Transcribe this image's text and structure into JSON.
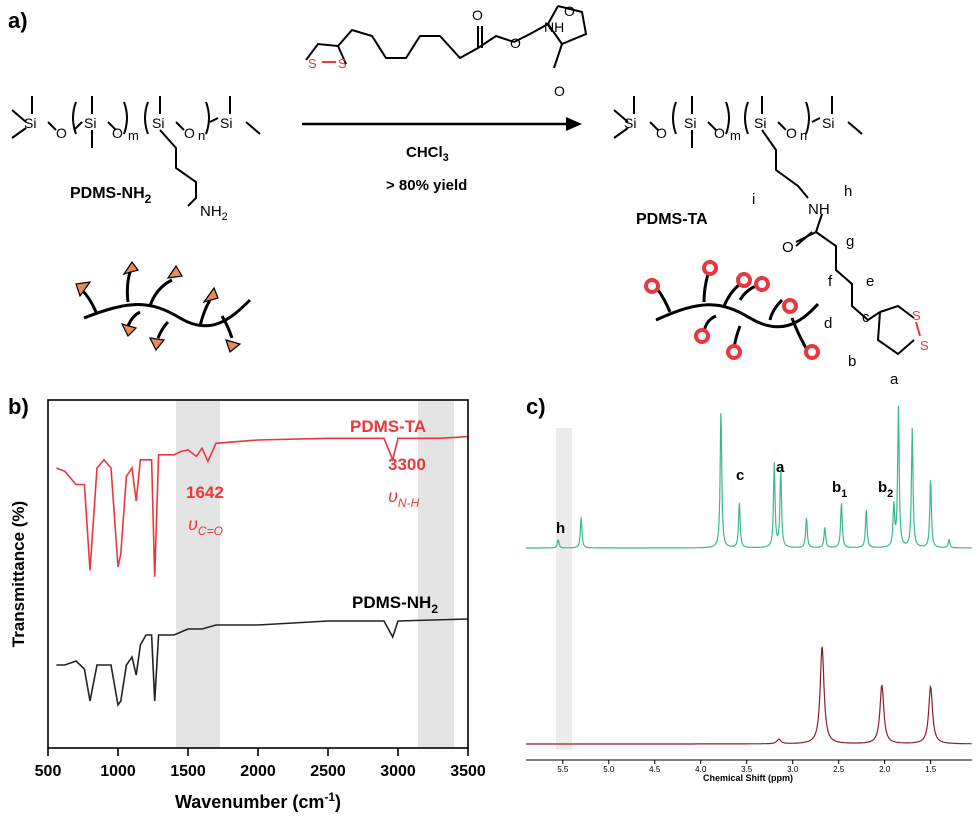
{
  "panels": {
    "a": "a)",
    "b": "b)",
    "c": "c)"
  },
  "scheme": {
    "reactant_name": "PDMS-NH",
    "reactant_sub": "2",
    "product_name": "PDMS-TA",
    "solvent": "CHCl",
    "solvent_sub": "3",
    "yield": "> 80% yield",
    "atoms": {
      "si": "Si",
      "o": "O",
      "m": "m",
      "n": "n",
      "nh2": "NH",
      "nh2_sub": "2",
      "nh": "NH",
      "carbonyl_o": "O",
      "ss_s": "S",
      "ss_s2": "S"
    },
    "proton_labels": [
      "a",
      "b",
      "c",
      "d",
      "e",
      "f",
      "g",
      "h",
      "i"
    ]
  },
  "ir": {
    "ylabel": "Transmittance (%)",
    "xlabel": "Wavenumber (cm",
    "xlabel_sup": "-1",
    "xlabel_end": ")",
    "series_top": "PDMS-TA",
    "series_bottom": "PDMS-NH",
    "series_bottom_sub": "2",
    "peak1_value": "1642",
    "peak1_sym": "υ",
    "peak1_sub": "C=O",
    "peak2_value": "3300",
    "peak2_sym": "υ",
    "peak2_sub": "N-H",
    "ticks": [
      "500",
      "1000",
      "1500",
      "2000",
      "2500",
      "3000",
      "3500"
    ],
    "colors": {
      "top": "#e8383d",
      "bottom": "#222222",
      "band": "#e4e4e4"
    }
  },
  "nmr": {
    "xlabel": "Chemical Shift (ppm)",
    "ticks": [
      "5.5",
      "5.0",
      "4.5",
      "4.0",
      "3.5",
      "3.0",
      "2.5",
      "2.0",
      "1.5"
    ],
    "peak_labels": {
      "h": "h",
      "c": "c",
      "a": "a",
      "b1": "b",
      "b1_sub": "1",
      "b2": "b",
      "b2_sub": "2"
    },
    "colors": {
      "top": "#3cb88f",
      "bottom": "#8b1f2a"
    }
  },
  "chart_data": [
    {
      "type": "line",
      "ylabel": "Transmittance (%)",
      "xlabel": "Wavenumber (cm-1)",
      "xlim": [
        500,
        3500
      ],
      "series": [
        {
          "name": "PDMS-TA",
          "x": [
            560,
            620,
            700,
            760,
            800,
            850,
            900,
            950,
            1000,
            1020,
            1060,
            1100,
            1130,
            1160,
            1200,
            1240,
            1262,
            1290,
            1400,
            1450,
            1500,
            1560,
            1600,
            1642,
            1700,
            2000,
            2500,
            2800,
            2900,
            2962,
            3000,
            3300,
            3500
          ],
          "y": [
            80,
            78,
            70,
            70,
            18,
            80,
            85,
            80,
            20,
            28,
            75,
            80,
            60,
            85,
            85,
            85,
            14,
            88,
            88,
            90,
            91,
            87,
            92,
            84,
            95,
            97,
            98,
            98,
            98,
            85,
            98,
            98,
            99
          ]
        },
        {
          "name": "PDMS-NH2",
          "x": [
            560,
            620,
            700,
            760,
            800,
            850,
            900,
            950,
            1000,
            1020,
            1060,
            1100,
            1130,
            1160,
            1200,
            1240,
            1262,
            1290,
            1400,
            1500,
            1600,
            1700,
            2000,
            2500,
            2800,
            2900,
            2962,
            3000,
            3500
          ],
          "y": [
            40,
            40,
            42,
            38,
            22,
            40,
            40,
            40,
            20,
            22,
            40,
            44,
            35,
            50,
            55,
            55,
            22,
            55,
            55,
            58,
            58,
            60,
            60,
            62,
            62,
            62,
            54,
            62,
            63
          ]
        }
      ],
      "annotations": [
        "1642 υC=O",
        "3300 υN-H"
      ]
    },
    {
      "type": "line",
      "xlabel": "Chemical Shift (ppm)",
      "xlim": [
        5.9,
        1.05
      ],
      "series": [
        {
          "x": [
            5.55,
            5.3,
            3.78,
            3.58,
            3.2,
            3.13,
            2.85,
            2.65,
            2.47,
            2.2,
            1.9,
            1.85,
            1.7,
            1.5,
            1.3
          ],
          "y": [
            6,
            22,
            100,
            33,
            60,
            56,
            22,
            15,
            33,
            28,
            30,
            100,
            85,
            50,
            6
          ]
        },
        {
          "x": [
            3.15,
            2.68,
            2.03,
            1.5
          ],
          "y": [
            3,
            63,
            38,
            37
          ]
        }
      ],
      "peak_labels": [
        "h",
        "c",
        "a",
        "b1",
        "b2"
      ]
    }
  ]
}
